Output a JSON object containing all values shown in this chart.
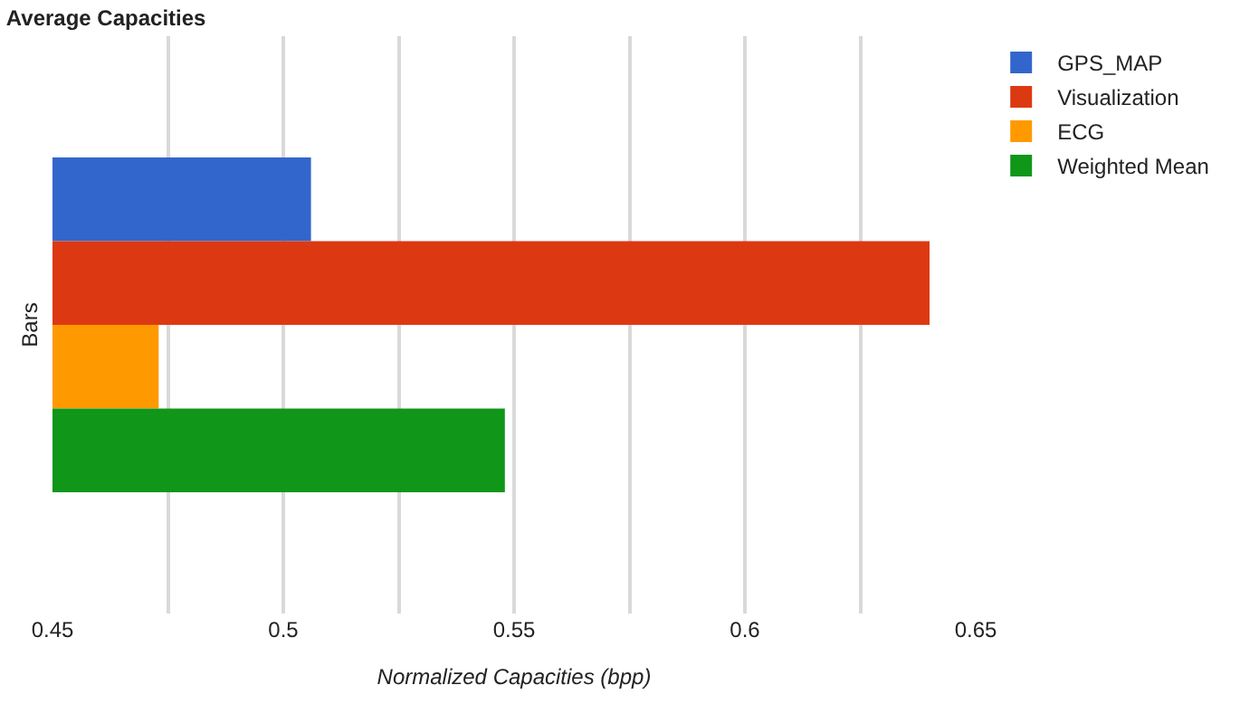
{
  "chart_data": {
    "type": "bar",
    "orientation": "horizontal",
    "title": "Average Capacities",
    "xlabel": "Normalized Capacities (bpp)",
    "ylabel": "Bars",
    "categories": [
      null
    ],
    "series": [
      {
        "name": "GPS_MAP",
        "color": "#3366cc",
        "values": [
          0.506
        ]
      },
      {
        "name": "Visualization",
        "color": "#dc3912",
        "values": [
          0.64
        ]
      },
      {
        "name": "ECG",
        "color": "#ff9900",
        "values": [
          0.473
        ]
      },
      {
        "name": "Weighted Mean",
        "color": "#109618",
        "values": [
          0.548
        ]
      }
    ],
    "xlim": [
      0.45,
      0.65
    ],
    "xticks": [
      0.45,
      {
        "value": 0.475,
        "label": null
      },
      0.5,
      {
        "value": 0.525,
        "label": null
      },
      0.55,
      {
        "value": 0.575,
        "label": null
      },
      0.6,
      {
        "value": 0.625,
        "label": null
      },
      0.65
    ],
    "grid": "x",
    "legend": "top right"
  }
}
